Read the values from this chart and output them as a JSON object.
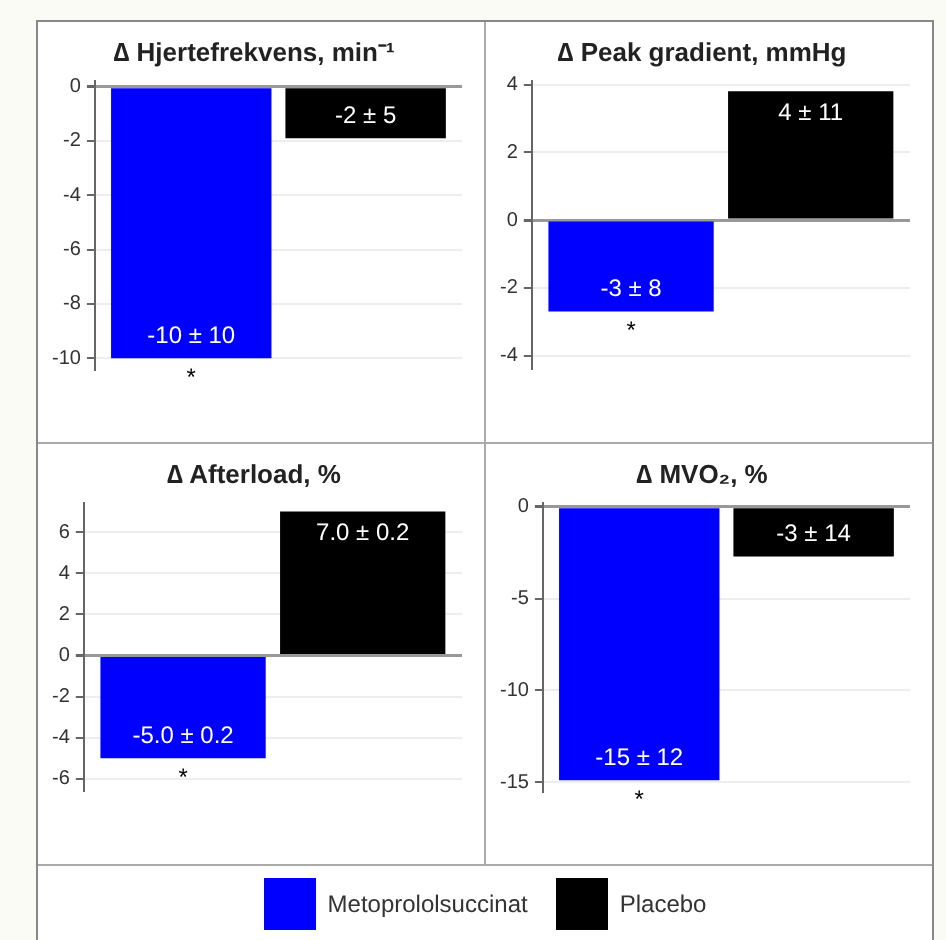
{
  "chart_data": [
    {
      "type": "bar",
      "title": "∆ Hjertefrekvens, min⁻¹",
      "categories": [
        null
      ],
      "ylim": [
        -10.4,
        0.2
      ],
      "yticks": [
        0,
        -2,
        -4,
        -6,
        -8,
        -10
      ],
      "grid": "y",
      "annotations": [
        "*"
      ],
      "legend": "bottom",
      "series": [
        {
          "name": "Metoprololsuccinat",
          "color": "#0000ff",
          "values": [
            -10
          ],
          "value_labels": [
            "-10 ± 10"
          ]
        },
        {
          "name": "Placebo",
          "color": "#000000",
          "values": [
            -1.9
          ],
          "value_labels": [
            "-2 ± 5"
          ]
        }
      ]
    },
    {
      "type": "bar",
      "title": "∆ Peak gradient, mmHg",
      "categories": [
        null
      ],
      "ylim": [
        -4.4,
        4.1
      ],
      "yticks": [
        4,
        2,
        0,
        -2,
        -4
      ],
      "grid": "y",
      "annotations": [
        "*"
      ],
      "series": [
        {
          "color": "#0000ff",
          "values": [
            -2.7
          ],
          "value_labels": [
            "-3 ± 8"
          ]
        },
        {
          "color": "#000000",
          "values": [
            3.8
          ],
          "value_labels": [
            "4 ± 11"
          ]
        }
      ]
    },
    {
      "type": "bar",
      "title": "∆ Afterload, %",
      "categories": [
        null
      ],
      "ylim": [
        -6.6,
        7.4
      ],
      "yticks": [
        6,
        4,
        2,
        0,
        -2,
        -4,
        -6
      ],
      "grid": "y",
      "annotations": [
        "*"
      ],
      "series": [
        {
          "color": "#0000ff",
          "values": [
            -5.0
          ],
          "value_labels": [
            "-5.0 ± 0.2"
          ]
        },
        {
          "color": "#000000",
          "values": [
            7.0
          ],
          "value_labels": [
            "7.0 ± 0.2"
          ]
        }
      ]
    },
    {
      "type": "bar",
      "title": "∆ MVO₂, %",
      "categories": [
        null
      ],
      "ylim": [
        -15.5,
        0.2
      ],
      "yticks": [
        0,
        -5,
        -10,
        -15
      ],
      "grid": "y",
      "annotations": [
        "*"
      ],
      "series": [
        {
          "color": "#0000ff",
          "values": [
            -14.9
          ],
          "value_labels": [
            "-15 ± 12"
          ]
        },
        {
          "color": "#000000",
          "values": [
            -2.7
          ],
          "value_labels": [
            "-3 ± 14"
          ]
        }
      ]
    }
  ]
}
